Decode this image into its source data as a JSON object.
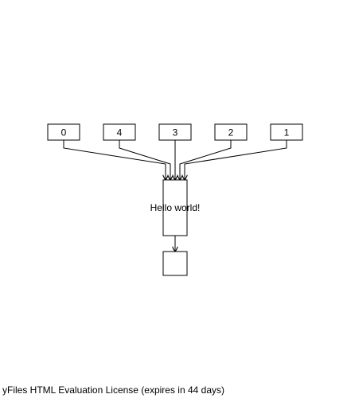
{
  "diagram": {
    "top_nodes": [
      {
        "id": "n0",
        "label": "0"
      },
      {
        "id": "n4",
        "label": "4"
      },
      {
        "id": "n3",
        "label": "3"
      },
      {
        "id": "n2",
        "label": "2"
      },
      {
        "id": "n1",
        "label": "1"
      }
    ],
    "center_node": {
      "id": "hello",
      "label": "Hello world!"
    },
    "bottom_node": {
      "id": "sink",
      "label": ""
    },
    "edges": [
      {
        "from": "n0",
        "to": "hello"
      },
      {
        "from": "n4",
        "to": "hello"
      },
      {
        "from": "n3",
        "to": "hello"
      },
      {
        "from": "n2",
        "to": "hello"
      },
      {
        "from": "n1",
        "to": "hello"
      },
      {
        "from": "hello",
        "to": "sink"
      }
    ]
  },
  "footer": {
    "license_text": "yFiles HTML Evaluation License (expires in 44 days)"
  }
}
